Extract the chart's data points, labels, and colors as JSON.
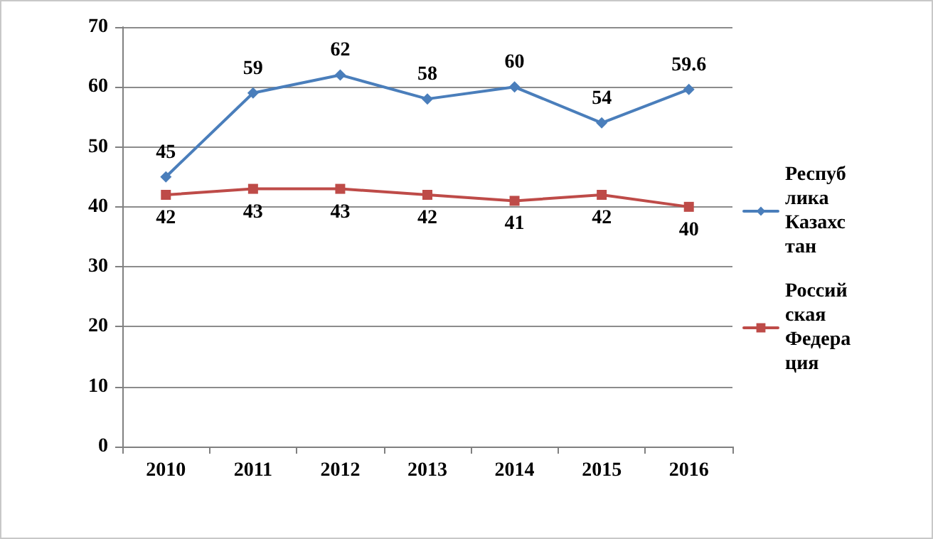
{
  "chart_data": {
    "type": "line",
    "categories": [
      "2010",
      "2011",
      "2012",
      "2013",
      "2014",
      "2015",
      "2016"
    ],
    "series": [
      {
        "name": "Республика Казахстан",
        "color": "#4a7ebb",
        "marker": "diamond",
        "values": [
          45,
          59,
          62,
          58,
          60,
          54,
          59.6
        ]
      },
      {
        "name": "Российская Федерация",
        "color": "#be4b48",
        "marker": "square",
        "values": [
          42,
          43,
          43,
          42,
          41,
          42,
          40
        ]
      }
    ],
    "ylim": [
      0,
      70
    ],
    "yticks": [
      0,
      10,
      20,
      30,
      40,
      50,
      60,
      70
    ],
    "grid": "y",
    "legend": "right",
    "data_labels": true
  }
}
